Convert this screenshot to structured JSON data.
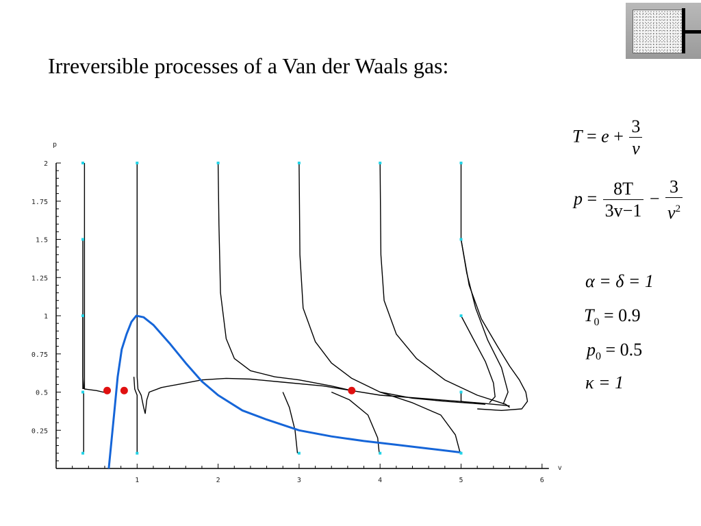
{
  "slide": {
    "title": "Irreversible processes of a Van der Waals gas:"
  },
  "logo": {
    "icon": "piston-cylinder-icon"
  },
  "equations": {
    "temperature": {
      "lhs": "T",
      "eq": "=",
      "e": "e",
      "plus": "+",
      "num": "3",
      "den": "v"
    },
    "pressure": {
      "lhs": "p",
      "eq": "=",
      "num1": "8T",
      "den1": "3v−1",
      "minus": "−",
      "num2": "3",
      "den2_base": "v",
      "den2_sup": "2"
    },
    "params": {
      "alpha_delta": {
        "text": "α = δ = 1"
      },
      "T0": {
        "sym": "T",
        "sub": "0",
        "val": "= 0.9"
      },
      "p0": {
        "sym": "p",
        "sub": "0",
        "val": "= 0.5"
      },
      "kappa": {
        "text": "κ = 1"
      }
    }
  },
  "chart_data": {
    "type": "line",
    "xlabel": "v",
    "ylabel": "p",
    "xlim": [
      0,
      6
    ],
    "ylim": [
      0,
      2
    ],
    "x_ticks": [
      1,
      2,
      3,
      4,
      5,
      6
    ],
    "x_tick_labels": [
      "1",
      "2",
      "3",
      "4",
      "5",
      "6"
    ],
    "y_ticks": [
      0.25,
      0.5,
      0.75,
      1,
      1.25,
      1.5,
      1.75,
      2
    ],
    "y_tick_labels": [
      "0.25",
      "0.5",
      "0.75",
      "1",
      "1.25",
      "1.5",
      "1.75",
      "2"
    ],
    "grid": false,
    "colors": {
      "process": "#000000",
      "spinodal": "#1565d8",
      "start": "#22d3e6",
      "equilibrium": "#e01010"
    },
    "spinodal_curve": {
      "color": "#1565d8",
      "points": [
        [
          0.65,
          0
        ],
        [
          0.68,
          0.16
        ],
        [
          0.72,
          0.38
        ],
        [
          0.76,
          0.6
        ],
        [
          0.81,
          0.78
        ],
        [
          0.87,
          0.88
        ],
        [
          0.93,
          0.96
        ],
        [
          0.99,
          1.0
        ],
        [
          1.08,
          0.99
        ],
        [
          1.2,
          0.94
        ],
        [
          1.4,
          0.82
        ],
        [
          1.6,
          0.69
        ],
        [
          1.8,
          0.57
        ],
        [
          2.0,
          0.48
        ],
        [
          2.3,
          0.38
        ],
        [
          2.6,
          0.32
        ],
        [
          3.0,
          0.25
        ],
        [
          3.4,
          0.21
        ],
        [
          3.8,
          0.18
        ],
        [
          4.2,
          0.155
        ],
        [
          4.6,
          0.13
        ],
        [
          5.0,
          0.105
        ]
      ]
    },
    "processes": [
      [
        [
          0.35,
          2.0
        ],
        [
          0.35,
          0.6
        ],
        [
          0.35,
          0.52
        ],
        [
          0.5,
          0.51
        ],
        [
          0.58,
          0.5
        ],
        [
          0.65,
          0.5
        ]
      ],
      [
        [
          0.33,
          1.5
        ],
        [
          0.33,
          0.6
        ],
        [
          0.34,
          0.52
        ]
      ],
      [
        [
          0.33,
          1.0
        ],
        [
          0.33,
          0.52
        ]
      ],
      [
        [
          0.34,
          0.1
        ],
        [
          0.34,
          0.5
        ]
      ],
      [
        [
          1.0,
          2.0
        ],
        [
          1.0,
          0.6
        ],
        [
          1.01,
          0.52
        ],
        [
          1.05,
          0.48
        ],
        [
          1.08,
          0.4
        ],
        [
          1.1,
          0.36
        ],
        [
          1.12,
          0.45
        ],
        [
          1.15,
          0.5
        ],
        [
          1.3,
          0.53
        ],
        [
          1.5,
          0.55
        ],
        [
          1.8,
          0.58
        ],
        [
          2.1,
          0.59
        ],
        [
          2.4,
          0.585
        ],
        [
          2.8,
          0.565
        ],
        [
          3.3,
          0.54
        ],
        [
          3.65,
          0.51
        ],
        [
          4.0,
          0.48
        ],
        [
          4.6,
          0.455
        ],
        [
          5.2,
          0.43
        ],
        [
          5.6,
          0.41
        ]
      ],
      [
        [
          0.96,
          0.6
        ],
        [
          0.97,
          0.52
        ],
        [
          1.0,
          0.48
        ],
        [
          1.0,
          0.3
        ],
        [
          1.0,
          0.1
        ]
      ],
      [
        [
          2.0,
          2.0
        ],
        [
          2.01,
          1.6
        ],
        [
          2.03,
          1.15
        ],
        [
          2.1,
          0.85
        ],
        [
          2.2,
          0.72
        ],
        [
          2.4,
          0.64
        ],
        [
          2.7,
          0.6
        ],
        [
          3.0,
          0.58
        ],
        [
          3.4,
          0.54
        ],
        [
          3.65,
          0.51
        ]
      ],
      [
        [
          3.0,
          2.0
        ],
        [
          3.01,
          1.4
        ],
        [
          3.05,
          1.05
        ],
        [
          3.2,
          0.83
        ],
        [
          3.4,
          0.69
        ],
        [
          3.65,
          0.59
        ],
        [
          4.0,
          0.5
        ],
        [
          4.4,
          0.46
        ],
        [
          4.8,
          0.44
        ],
        [
          5.3,
          0.42
        ]
      ],
      [
        [
          4.0,
          2.0
        ],
        [
          4.01,
          1.4
        ],
        [
          4.05,
          1.1
        ],
        [
          4.2,
          0.88
        ],
        [
          4.45,
          0.72
        ],
        [
          4.8,
          0.58
        ],
        [
          5.2,
          0.48
        ],
        [
          5.55,
          0.42
        ],
        [
          5.6,
          0.4
        ]
      ],
      [
        [
          5.0,
          2.0
        ],
        [
          5.0,
          1.5
        ],
        [
          5.1,
          1.2
        ],
        [
          5.25,
          0.98
        ],
        [
          5.45,
          0.8
        ],
        [
          5.6,
          0.67
        ],
        [
          5.72,
          0.58
        ],
        [
          5.8,
          0.5
        ],
        [
          5.82,
          0.44
        ],
        [
          5.75,
          0.39
        ],
        [
          5.5,
          0.38
        ],
        [
          5.2,
          0.39
        ]
      ],
      [
        [
          5.0,
          1.5
        ],
        [
          5.07,
          1.28
        ],
        [
          5.18,
          1.05
        ],
        [
          5.33,
          0.84
        ],
        [
          5.5,
          0.66
        ],
        [
          5.58,
          0.5
        ],
        [
          5.52,
          0.42
        ]
      ],
      [
        [
          5.0,
          1.0
        ],
        [
          5.15,
          0.85
        ],
        [
          5.3,
          0.7
        ],
        [
          5.4,
          0.56
        ],
        [
          5.42,
          0.47
        ],
        [
          5.35,
          0.43
        ]
      ],
      [
        [
          5.0,
          0.5
        ],
        [
          5.0,
          0.44
        ],
        [
          5.1,
          0.43
        ]
      ],
      [
        [
          2.8,
          0.5
        ],
        [
          2.88,
          0.4
        ],
        [
          2.95,
          0.25
        ],
        [
          2.98,
          0.1
        ]
      ],
      [
        [
          3.4,
          0.5
        ],
        [
          3.62,
          0.45
        ],
        [
          3.85,
          0.35
        ],
        [
          3.97,
          0.2
        ],
        [
          3.99,
          0.1
        ]
      ],
      [
        [
          4.0,
          0.5
        ],
        [
          4.4,
          0.43
        ],
        [
          4.75,
          0.35
        ],
        [
          4.93,
          0.22
        ],
        [
          4.99,
          0.1
        ]
      ]
    ],
    "start_points": [
      [
        0.33,
        2.0
      ],
      [
        0.33,
        1.5
      ],
      [
        0.33,
        1.0
      ],
      [
        0.33,
        0.5
      ],
      [
        0.33,
        0.1
      ],
      [
        1.0,
        2.0
      ],
      [
        1.0,
        0.1
      ],
      [
        2.0,
        2.0
      ],
      [
        3.0,
        2.0
      ],
      [
        3.0,
        0.1
      ],
      [
        4.0,
        2.0
      ],
      [
        4.0,
        0.1
      ],
      [
        5.0,
        2.0
      ],
      [
        5.0,
        1.5
      ],
      [
        5.0,
        1.0
      ],
      [
        5.0,
        0.5
      ],
      [
        5.0,
        0.1
      ]
    ],
    "equilibrium_points": [
      [
        0.63,
        0.51
      ],
      [
        0.84,
        0.51
      ],
      [
        3.65,
        0.51
      ]
    ]
  }
}
